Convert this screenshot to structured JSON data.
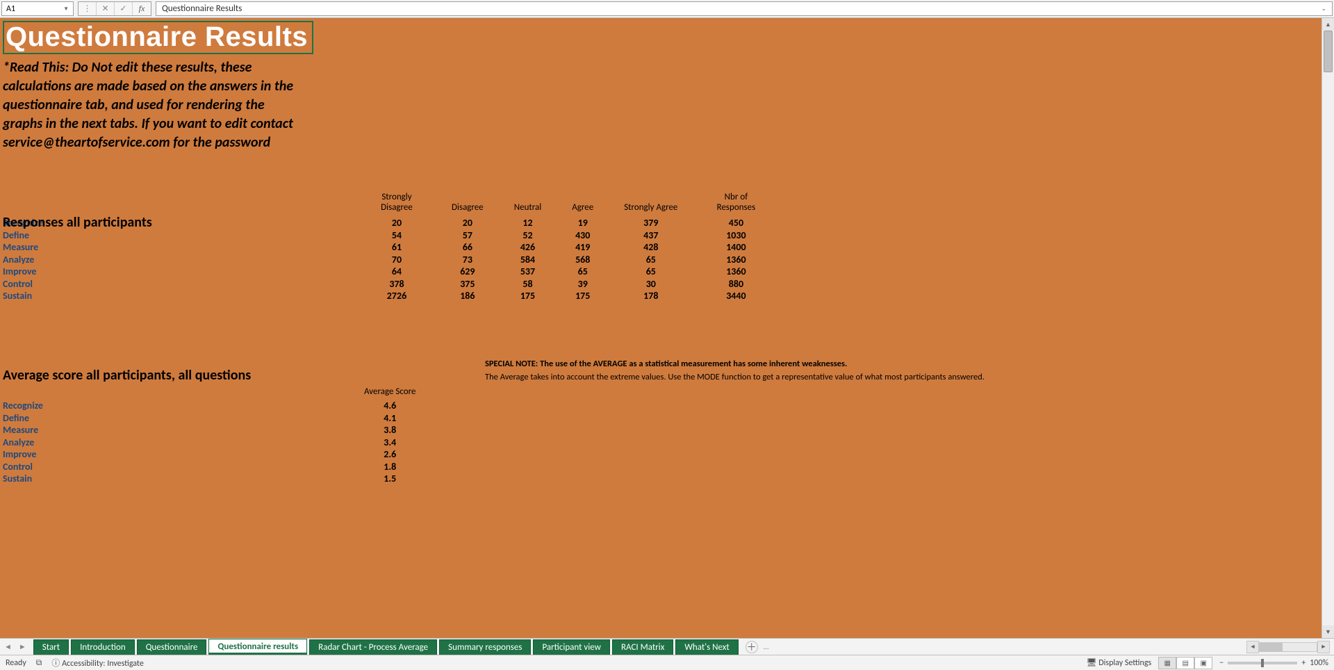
{
  "formula_bar": {
    "cell_ref": "A1",
    "formula_value": "Questionnaire Results"
  },
  "sheet": {
    "title": "Questionnaire Results",
    "warning": "*Read This: Do Not edit these results, these calculations are made based on the answers in the questionnaire tab, and used for rendering the graphs in the next tabs. If you want to edit contact service@theartofservice.com for the password",
    "responses_heading": "Responses all participants",
    "responses": {
      "columns": [
        "Strongly Disagree",
        "Disagree",
        "Neutral",
        "Agree",
        "Strongly Agree",
        "Nbr of Responses"
      ],
      "rows": [
        {
          "label": "Recognize",
          "values": [
            "20",
            "20",
            "12",
            "19",
            "379",
            "450"
          ]
        },
        {
          "label": "Define",
          "values": [
            "54",
            "57",
            "52",
            "430",
            "437",
            "1030"
          ]
        },
        {
          "label": "Measure",
          "values": [
            "61",
            "66",
            "426",
            "419",
            "428",
            "1400"
          ]
        },
        {
          "label": "Analyze",
          "values": [
            "70",
            "73",
            "584",
            "568",
            "65",
            "1360"
          ]
        },
        {
          "label": "Improve",
          "values": [
            "64",
            "629",
            "537",
            "65",
            "65",
            "1360"
          ]
        },
        {
          "label": "Control",
          "values": [
            "378",
            "375",
            "58",
            "39",
            "30",
            "880"
          ]
        },
        {
          "label": "Sustain",
          "values": [
            "2726",
            "186",
            "175",
            "175",
            "178",
            "3440"
          ]
        }
      ]
    },
    "avg_heading": "Average score all participants, all questions",
    "avg": {
      "column": "Average Score",
      "rows": [
        {
          "label": "Recognize",
          "value": "4.6"
        },
        {
          "label": "Define",
          "value": "4.1"
        },
        {
          "label": "Measure",
          "value": "3.8"
        },
        {
          "label": "Analyze",
          "value": "3.4"
        },
        {
          "label": "Improve",
          "value": "2.6"
        },
        {
          "label": "Control",
          "value": "1.8"
        },
        {
          "label": "Sustain",
          "value": "1.5"
        }
      ]
    },
    "note_bold": "SPECIAL NOTE: The use of the AVERAGE as a statistical measurement has some inherent weaknesses.",
    "note_text": "The Average takes into account the extreme values. Use the MODE function to get a representative value of what most participants answered."
  },
  "tabs": {
    "items": [
      {
        "label": "Start",
        "active": false
      },
      {
        "label": "Introduction",
        "active": false
      },
      {
        "label": "Questionnaire",
        "active": false
      },
      {
        "label": "Questionnaire results",
        "active": true
      },
      {
        "label": "Radar Chart - Process Average",
        "active": false
      },
      {
        "label": "Summary responses",
        "active": false
      },
      {
        "label": "Participant view",
        "active": false
      },
      {
        "label": "RACI Matrix",
        "active": false
      },
      {
        "label": "What's Next",
        "active": false
      }
    ]
  },
  "status": {
    "ready": "Ready",
    "accessibility": "Accessibility: Investigate",
    "display_settings": "Display Settings",
    "zoom": "100%"
  },
  "colors": {
    "sheet_bg": "#cf7b3e",
    "tab_green": "#1f7246",
    "row_label": "#1f497d",
    "title_text": "#ffffff"
  }
}
